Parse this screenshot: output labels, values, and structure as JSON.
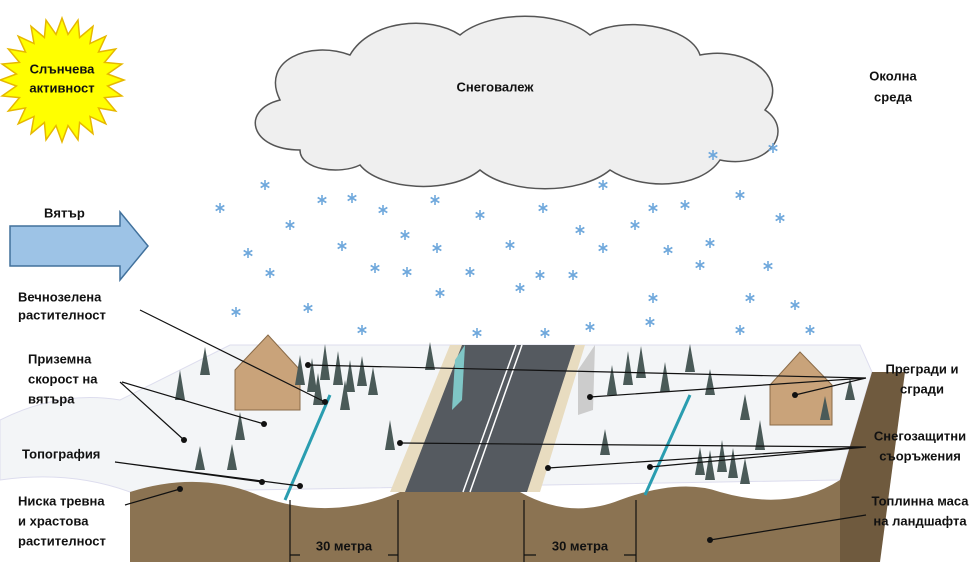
{
  "sun": {
    "lines": [
      "Слънчева",
      "активност"
    ]
  },
  "cloud": "Снеговалеж",
  "environment": {
    "lines": [
      "Околна",
      "среда"
    ]
  },
  "wind": "Вятър",
  "left_labels": [
    {
      "lines": [
        "Вечнозелена",
        "растителност"
      ]
    },
    {
      "lines": [
        "Приземна",
        "скорост на",
        "вятъра"
      ]
    },
    {
      "lines": [
        "Топография"
      ]
    },
    {
      "lines": [
        "Ниска тревна",
        "и храстова",
        "растителност"
      ]
    }
  ],
  "right_labels": [
    {
      "lines": [
        "Прегради и",
        "сгради"
      ]
    },
    {
      "lines": [
        "Снегозащитни",
        "съоръжения"
      ]
    },
    {
      "lines": [
        "Топлинна маса",
        "на ландшафта"
      ]
    }
  ],
  "distances": [
    "30 метра",
    "30 метра"
  ]
}
